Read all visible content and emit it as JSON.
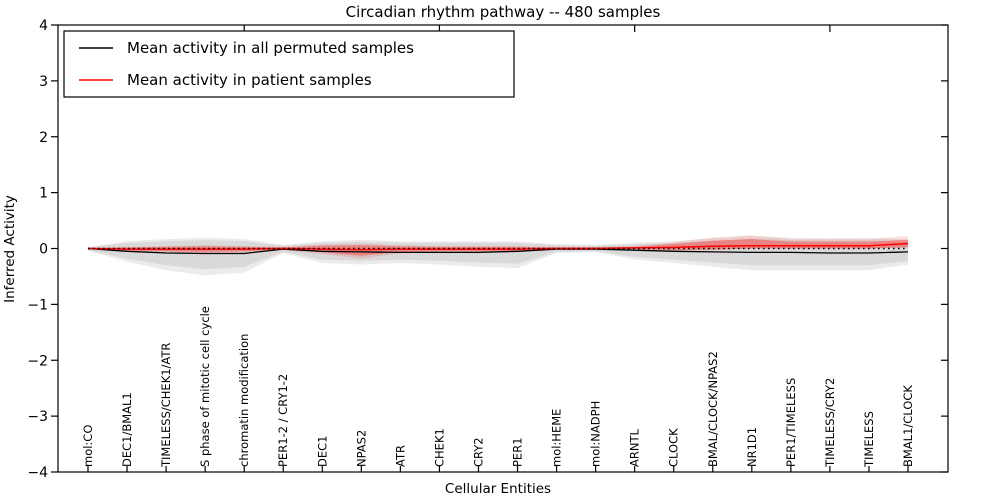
{
  "title": "Circadian rhythm pathway -- 480 samples",
  "xlabel": "Cellular Entities",
  "ylabel": "Inferred Activity",
  "legend": {
    "items": [
      {
        "label": "Mean activity in all permuted samples",
        "color": "#000000"
      },
      {
        "label": "Mean activity in patient samples",
        "color": "#ff0000"
      }
    ]
  },
  "colors": {
    "permuted_line": "#000000",
    "patient_line": "#ff0000",
    "permuted_band": "#d9d9d9",
    "permuted_band_halo": "#ebebeb",
    "patient_band": "rgba(255,0,0,0.30)",
    "patient_band_halo": "rgba(255,0,0,0.13)",
    "zero_line": "#000000"
  },
  "chart_data": {
    "type": "line",
    "title": "Circadian rhythm pathway -- 480 samples",
    "xlabel": "Cellular Entities",
    "ylabel": "Inferred Activity",
    "ylim": [
      -4,
      4
    ],
    "yticks": [
      "−4",
      "−3",
      "−2",
      "−1",
      "0",
      "1",
      "2",
      "3",
      "4"
    ],
    "ytick_values": [
      -4,
      -3,
      -2,
      -1,
      0,
      1,
      2,
      3,
      4
    ],
    "top_axis_tick_indices": [
      4,
      9,
      14,
      19
    ],
    "grid": false,
    "legend_position": "upper left",
    "categories": [
      "mol:CO",
      "DEC1/BMAL1",
      "TIMELESS/CHEK1/ATR",
      "S phase of mitotic cell cycle",
      "chromatin modification",
      "PER1-2 / CRY1-2",
      "DEC1",
      "NPAS2",
      "ATR",
      "CHEK1",
      "CRY2",
      "PER1",
      "mol:HEME",
      "mol:NADPH",
      "ARNTL",
      "CLOCK",
      "BMAL/CLOCK/NPAS2",
      "NR1D1",
      "PER1/TIMELESS",
      "TIMELESS/CRY2",
      "TIMELESS",
      "BMAL1/CLOCK"
    ],
    "series": [
      {
        "name": "Mean activity in all permuted samples",
        "values": [
          0.0,
          -0.05,
          -0.08,
          -0.09,
          -0.09,
          -0.01,
          -0.05,
          -0.06,
          -0.07,
          -0.07,
          -0.07,
          -0.05,
          -0.01,
          -0.01,
          -0.03,
          -0.05,
          -0.06,
          -0.07,
          -0.07,
          -0.08,
          -0.08,
          -0.06
        ]
      },
      {
        "name": "Mean activity in patient samples",
        "values": [
          0.0,
          -0.01,
          -0.01,
          -0.01,
          -0.01,
          0.0,
          -0.01,
          -0.02,
          -0.01,
          -0.01,
          -0.01,
          -0.01,
          0.0,
          0.0,
          0.01,
          0.02,
          0.04,
          0.05,
          0.05,
          0.05,
          0.05,
          0.09
        ]
      }
    ],
    "bands": [
      {
        "name": "permuted band",
        "top": [
          0.02,
          0.1,
          0.13,
          0.15,
          0.13,
          0.05,
          0.1,
          0.12,
          0.1,
          0.1,
          0.1,
          0.1,
          0.06,
          0.05,
          0.08,
          0.1,
          0.14,
          0.17,
          0.15,
          0.14,
          0.15,
          0.12
        ],
        "bottom": [
          -0.03,
          -0.18,
          -0.3,
          -0.37,
          -0.33,
          -0.06,
          -0.2,
          -0.22,
          -0.2,
          -0.22,
          -0.25,
          -0.27,
          -0.06,
          -0.05,
          -0.15,
          -0.2,
          -0.25,
          -0.3,
          -0.3,
          -0.3,
          -0.3,
          -0.22
        ]
      },
      {
        "name": "patient band",
        "top": [
          0.01,
          0.02,
          0.03,
          0.04,
          0.03,
          0.02,
          0.05,
          0.06,
          0.04,
          0.03,
          0.03,
          0.03,
          0.02,
          0.02,
          0.03,
          0.08,
          0.14,
          0.17,
          0.12,
          0.12,
          0.12,
          0.16
        ],
        "bottom": [
          -0.01,
          -0.04,
          -0.05,
          -0.06,
          -0.05,
          -0.02,
          -0.07,
          -0.13,
          -0.06,
          -0.05,
          -0.05,
          -0.05,
          -0.02,
          -0.02,
          -0.01,
          -0.03,
          -0.02,
          0.0,
          0.0,
          0.0,
          0.0,
          0.02
        ]
      }
    ],
    "zero_reference_line": 0
  }
}
